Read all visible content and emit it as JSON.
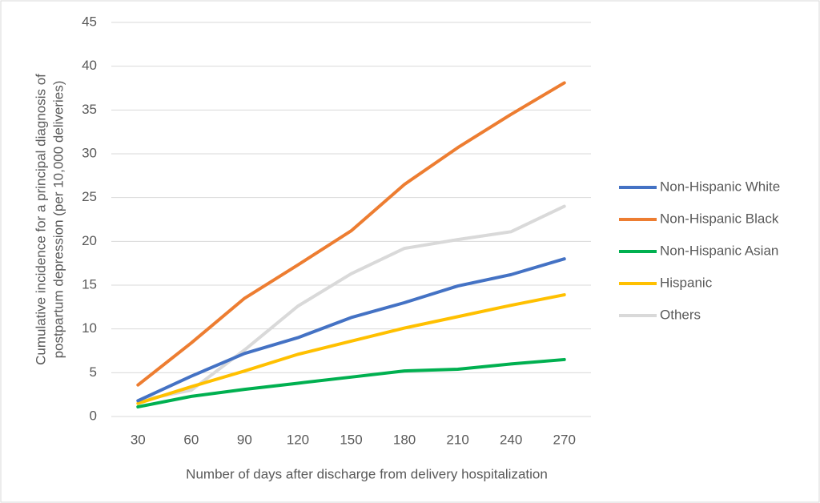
{
  "chart_data": {
    "type": "line",
    "xlabel": "Number of days after discharge from delivery hospitalization",
    "ylabel": [
      "Cumulative incidence for a principal diagnosis of",
      "postpartum depression (per 10,000 deliveries)"
    ],
    "categories": [
      "30",
      "60",
      "90",
      "120",
      "150",
      "180",
      "210",
      "240",
      "270"
    ],
    "series": [
      {
        "name": "Non-Hispanic White",
        "color": "#4472c4",
        "values": [
          1.8,
          4.6,
          7.2,
          9.0,
          11.3,
          13.0,
          14.9,
          16.2,
          18.0
        ]
      },
      {
        "name": "Non-Hispanic Black",
        "color": "#ed7d31",
        "values": [
          3.6,
          8.4,
          13.5,
          17.3,
          21.2,
          26.5,
          30.7,
          34.5,
          38.1
        ]
      },
      {
        "name": "Non-Hispanic Asian",
        "color": "#00b050",
        "values": [
          1.1,
          2.3,
          3.1,
          3.8,
          4.5,
          5.2,
          5.4,
          6.0,
          6.5
        ]
      },
      {
        "name": "Hispanic",
        "color": "#ffc000",
        "values": [
          1.5,
          3.4,
          5.2,
          7.1,
          8.6,
          10.1,
          11.4,
          12.7,
          13.9
        ]
      },
      {
        "name": "Others",
        "color": "#d9d9d9",
        "values": [
          1.8,
          3.0,
          7.6,
          12.6,
          16.3,
          19.2,
          20.2,
          21.1,
          24.0
        ]
      }
    ],
    "ylim": [
      0,
      45
    ],
    "yticks": [
      0,
      5,
      10,
      15,
      20,
      25,
      30,
      35,
      40,
      45
    ],
    "grid": true,
    "legend": "right"
  }
}
